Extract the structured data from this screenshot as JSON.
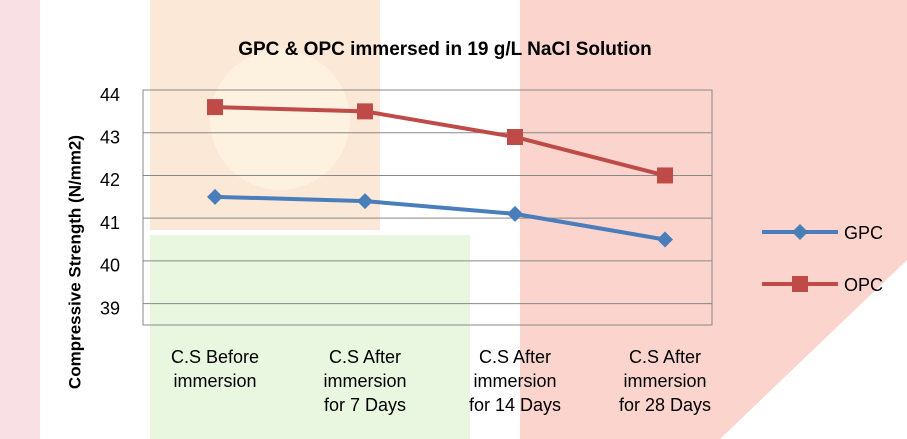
{
  "chart_data": {
    "type": "line",
    "title": "GPC & OPC immersed in 19 g/L NaCl Solution",
    "y_label": "Compressive Strength (N/mm2)",
    "categories": [
      "C.S Before immersion",
      "C.S After immersion for 7 Days",
      "C.S After immersion for 14 Days",
      "C.S After immersion for 28 Days"
    ],
    "series": [
      {
        "name": "GPC",
        "color": "#4a7ebb",
        "marker": "diamond",
        "values": [
          41.5,
          41.4,
          41.1,
          40.5
        ]
      },
      {
        "name": "OPC",
        "color": "#be4b48",
        "marker": "square",
        "values": [
          43.6,
          43.5,
          42.9,
          42.0
        ]
      }
    ],
    "ylim": [
      38.5,
      44
    ],
    "yticks": [
      39,
      40,
      41,
      42,
      43,
      44
    ],
    "grid": true,
    "legend": "right"
  }
}
